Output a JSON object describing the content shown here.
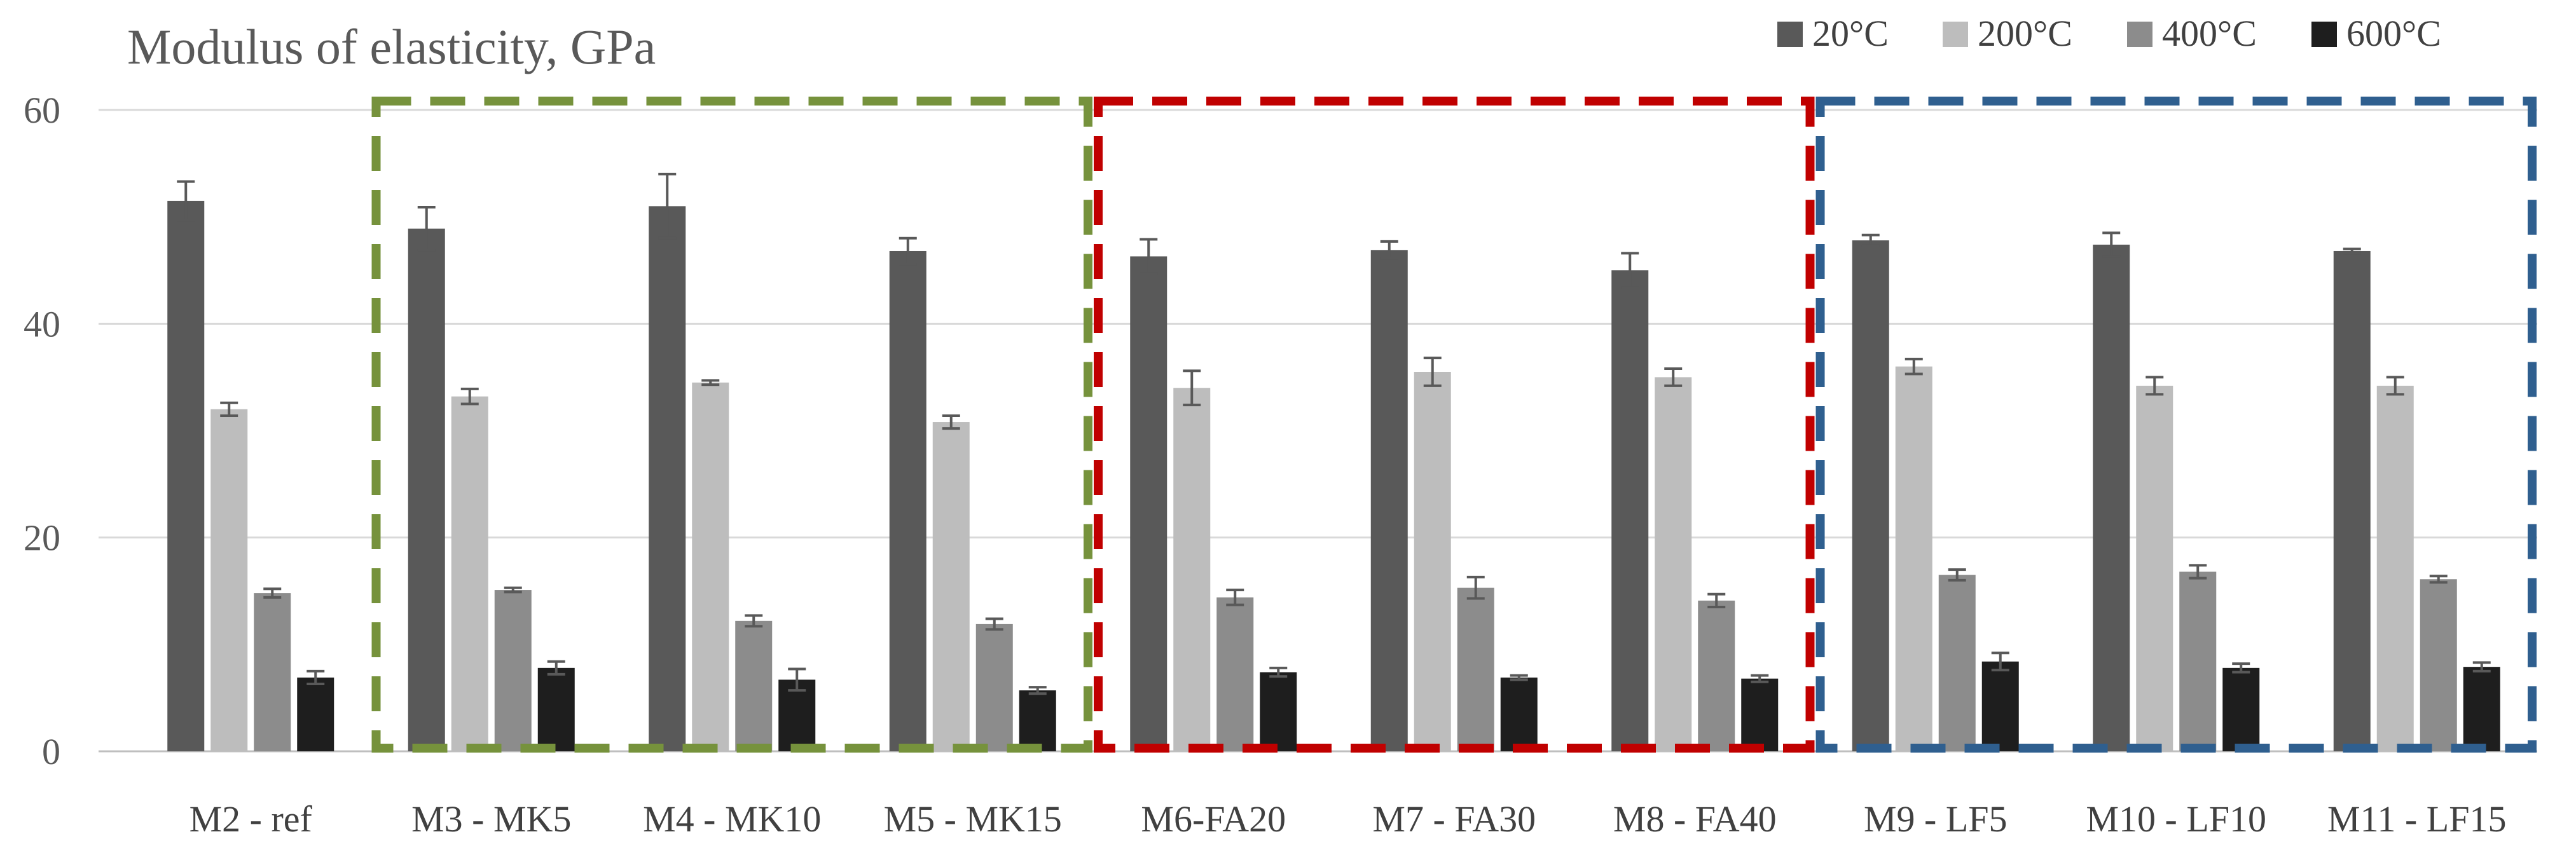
{
  "chart_data": {
    "type": "bar",
    "title": "Modulus of elasticity, GPa",
    "xlabel": "",
    "ylabel": "",
    "ylim": [
      0,
      60
    ],
    "yticks": [
      0,
      20,
      40,
      60
    ],
    "grid": true,
    "legend_position": "top-right",
    "categories": [
      "M2 - ref",
      "M3 - MK5",
      "M4 - MK10",
      "M5 - MK15",
      "M6-FA20",
      "M7 - FA30",
      "M8 - FA40",
      "M9 - LF5",
      "M10 - LF10",
      "M11 - LF15"
    ],
    "series": [
      {
        "name": "20°C",
        "color": "#595959",
        "values": [
          51.5,
          48.9,
          51.0,
          46.8,
          46.3,
          46.9,
          45.0,
          47.8,
          47.4,
          46.8
        ],
        "errors": [
          1.8,
          2.0,
          3.0,
          1.2,
          1.6,
          0.8,
          1.6,
          0.5,
          1.1,
          0.2
        ]
      },
      {
        "name": "200°C",
        "color": "#bdbdbd",
        "values": [
          32.0,
          33.2,
          34.5,
          30.8,
          34.0,
          35.5,
          35.0,
          36.0,
          34.2,
          34.2
        ],
        "errors": [
          0.6,
          0.7,
          0.2,
          0.6,
          1.6,
          1.3,
          0.8,
          0.7,
          0.8,
          0.8
        ]
      },
      {
        "name": "400°C",
        "color": "#8c8c8c",
        "values": [
          14.8,
          15.1,
          12.2,
          11.9,
          14.4,
          15.3,
          14.1,
          16.5,
          16.8,
          16.1
        ],
        "errors": [
          0.4,
          0.2,
          0.5,
          0.5,
          0.7,
          1.0,
          0.6,
          0.5,
          0.6,
          0.3
        ]
      },
      {
        "name": "600°C",
        "color": "#1e1e1e",
        "values": [
          6.9,
          7.8,
          6.7,
          5.7,
          7.4,
          6.9,
          6.8,
          8.4,
          7.8,
          7.9
        ],
        "errors": [
          0.6,
          0.6,
          1.0,
          0.3,
          0.4,
          0.2,
          0.3,
          0.8,
          0.4,
          0.4
        ]
      }
    ],
    "groups": [
      {
        "name": "metakaolin-group-box",
        "start": 1,
        "end": 3,
        "color": "#76923c"
      },
      {
        "name": "fly-ash-group-box",
        "start": 4,
        "end": 6,
        "color": "#c00000"
      },
      {
        "name": "limestone-filler-group-box",
        "start": 7,
        "end": 9,
        "color": "#2f5f8f"
      }
    ]
  }
}
